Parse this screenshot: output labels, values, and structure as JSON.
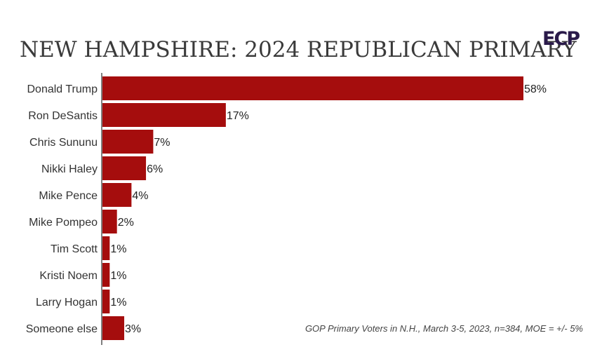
{
  "colors": {
    "bar": "#a50d0d",
    "logo": "#2a1a4a",
    "axis": "#555555"
  },
  "logo": {
    "text": "ECP"
  },
  "chart_data": {
    "type": "bar",
    "orientation": "horizontal",
    "title": "NEW HAMPSHIRE: 2024 REPUBLICAN PRIMARY",
    "categories": [
      "Donald Trump",
      "Ron DeSantis",
      "Chris Sununu",
      "Nikki Haley",
      "Mike Pence",
      "Mike Pompeo",
      "Tim Scott",
      "Kristi Noem",
      "Larry Hogan",
      "Someone else"
    ],
    "values": [
      58,
      17,
      7,
      6,
      4,
      2,
      1,
      1,
      1,
      3
    ],
    "labels": [
      "58%",
      "17%",
      "7%",
      "6%",
      "4%",
      "2%",
      "1%",
      "1%",
      "1%",
      "3%"
    ],
    "xlim": [
      0,
      58
    ],
    "grid": false,
    "note": "GOP Primary Voters in N.H., March 3-5, 2023, n=384, MOE = +/- 5%"
  }
}
